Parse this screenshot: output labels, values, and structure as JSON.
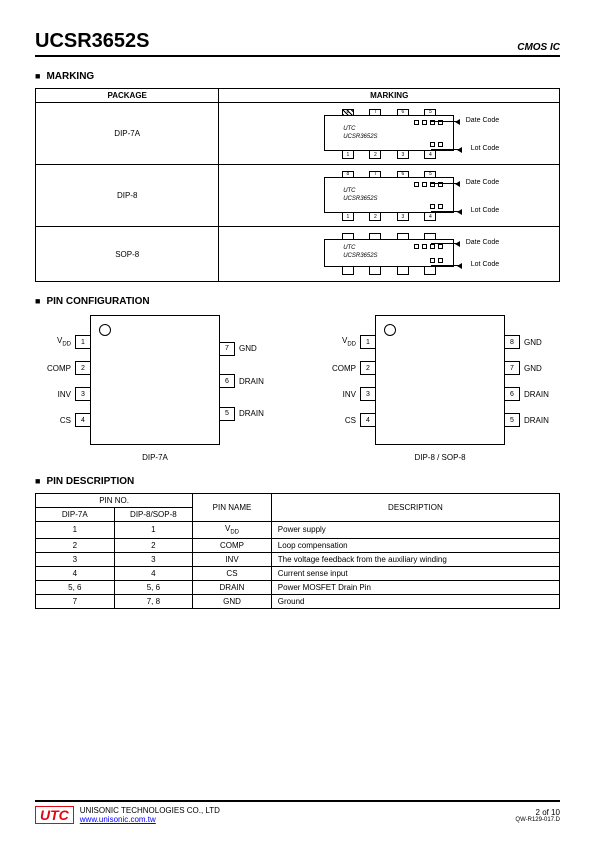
{
  "header": {
    "title": "UCSR3652S",
    "subtitle": "CMOS IC"
  },
  "sections": {
    "marking": "MARKING",
    "pinconfig": "PIN CONFIGURATION",
    "pindesc": "PIN DESCRIPTION"
  },
  "marking": {
    "col_package": "PACKAGE",
    "col_marking": "MARKING",
    "rows": [
      {
        "pkg": "DIP-7A",
        "chip_top": "UTC",
        "chip_bot": "UCSR3652S",
        "date": "Date Code",
        "lot": "Lot Code",
        "pins_top": [
          "8",
          "7",
          "6",
          "5"
        ],
        "pins_bot": [
          "1",
          "2",
          "3",
          "4"
        ],
        "nc_top": 1
      },
      {
        "pkg": "DIP-8",
        "chip_top": "UTC",
        "chip_bot": "UCSR3652S",
        "date": "Date Code",
        "lot": "Lot Code",
        "pins_top": [
          "8",
          "7",
          "6",
          "5"
        ],
        "pins_bot": [
          "1",
          "2",
          "3",
          "4"
        ],
        "nc_top": 0
      },
      {
        "pkg": "SOP-8",
        "chip_top": "UTC",
        "chip_bot": "UCSR3652S",
        "date": "Date Code",
        "lot": "Lot Code",
        "pins_top": [
          "",
          "",
          "",
          ""
        ],
        "pins_bot": [
          "",
          "",
          "",
          ""
        ],
        "nc_top": 0,
        "sop": true
      }
    ]
  },
  "pinconfig": {
    "left": {
      "caption": "DIP-7A",
      "left_pins": [
        {
          "n": "1",
          "lbl": "V",
          "sub": "DD"
        },
        {
          "n": "2",
          "lbl": "COMP"
        },
        {
          "n": "3",
          "lbl": "INV"
        },
        {
          "n": "4",
          "lbl": "CS"
        }
      ],
      "right_pins": [
        {
          "n": "7",
          "lbl": "GND"
        },
        {
          "n": "6",
          "lbl": "DRAIN"
        },
        {
          "n": "5",
          "lbl": "DRAIN"
        }
      ]
    },
    "right": {
      "caption": "DIP-8 / SOP-8",
      "left_pins": [
        {
          "n": "1",
          "lbl": "V",
          "sub": "DD"
        },
        {
          "n": "2",
          "lbl": "COMP"
        },
        {
          "n": "3",
          "lbl": "INV"
        },
        {
          "n": "4",
          "lbl": "CS"
        }
      ],
      "right_pins": [
        {
          "n": "8",
          "lbl": "GND"
        },
        {
          "n": "7",
          "lbl": "GND"
        },
        {
          "n": "6",
          "lbl": "DRAIN"
        },
        {
          "n": "5",
          "lbl": "DRAIN"
        }
      ]
    }
  },
  "pindesc": {
    "header": {
      "pinno": "PIN NO.",
      "dip7": "DIP-7A",
      "dip8": "DIP-8/SOP-8",
      "name": "PIN NAME",
      "desc": "DESCRIPTION"
    },
    "rows": [
      {
        "a": "1",
        "b": "1",
        "name": "V",
        "sub": "DD",
        "desc": "Power supply"
      },
      {
        "a": "2",
        "b": "2",
        "name": "COMP",
        "desc": "Loop compensation"
      },
      {
        "a": "3",
        "b": "3",
        "name": "INV",
        "desc": "The voltage feedback from the auxiliary winding"
      },
      {
        "a": "4",
        "b": "4",
        "name": "CS",
        "desc": "Current sense input"
      },
      {
        "a": "5, 6",
        "b": "5, 6",
        "name": "DRAIN",
        "desc": "Power MOSFET Drain Pin"
      },
      {
        "a": "7",
        "b": "7, 8",
        "name": "GND",
        "desc": "Ground"
      }
    ]
  },
  "footer": {
    "company": "UNISONIC TECHNOLOGIES CO., LTD",
    "url": "www.unisonic.com.tw",
    "page": "2 of 10",
    "code": "QW-R129-017.D",
    "logo": "UTC"
  }
}
